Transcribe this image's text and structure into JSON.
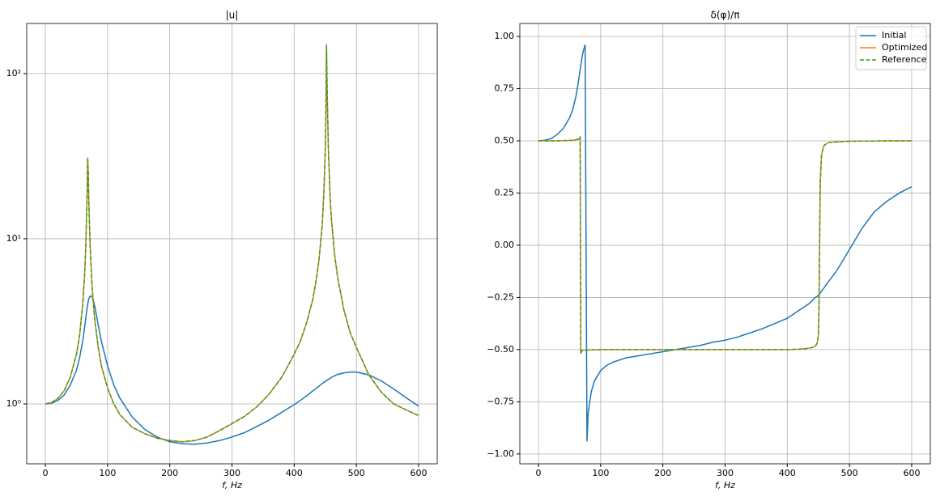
{
  "chart_data": [
    {
      "type": "line",
      "title": "|u|",
      "xlabel": "f, Hz",
      "yscale": "log",
      "grid": true,
      "xlim": [
        -30,
        630
      ],
      "ylim": [
        0.434,
        201
      ],
      "xticks": [
        0,
        100,
        200,
        300,
        400,
        500,
        600
      ],
      "yticks": [
        {
          "value": 1,
          "label": "10⁰"
        },
        {
          "value": 10,
          "label": "10¹"
        },
        {
          "value": 100,
          "label": "10²"
        }
      ],
      "x": [
        0,
        10,
        20,
        30,
        40,
        50,
        55,
        60,
        63,
        65,
        67,
        68,
        69,
        70,
        72,
        75,
        78,
        80,
        85,
        90,
        100,
        110,
        120,
        140,
        160,
        180,
        200,
        220,
        240,
        260,
        280,
        300,
        320,
        340,
        360,
        380,
        400,
        410,
        420,
        430,
        435,
        440,
        445,
        448,
        450,
        451,
        452,
        453,
        455,
        458,
        460,
        465,
        470,
        480,
        490,
        500,
        520,
        540,
        560,
        580,
        600
      ],
      "series": [
        {
          "color": "#1f77b4",
          "linestyle": "solid",
          "values": [
            1.0,
            1.01,
            1.05,
            1.13,
            1.3,
            1.6,
            1.9,
            2.4,
            2.9,
            3.3,
            3.8,
            4.0,
            4.2,
            4.35,
            4.5,
            4.45,
            4.1,
            3.8,
            3.0,
            2.4,
            1.7,
            1.3,
            1.08,
            0.83,
            0.7,
            0.63,
            0.59,
            0.575,
            0.57,
            0.58,
            0.6,
            0.63,
            0.67,
            0.73,
            0.8,
            0.89,
            0.99,
            1.05,
            1.12,
            1.2,
            1.24,
            1.28,
            1.33,
            1.35,
            1.37,
            1.38,
            1.38,
            1.39,
            1.41,
            1.43,
            1.45,
            1.48,
            1.51,
            1.54,
            1.56,
            1.56,
            1.5,
            1.38,
            1.23,
            1.09,
            0.97
          ]
        },
        {
          "color": "#ff7f0e",
          "linestyle": "solid",
          "values": [
            1.0,
            1.02,
            1.08,
            1.2,
            1.45,
            2.0,
            2.6,
            4.0,
            6,
            9,
            18,
            31,
            25,
            16,
            9,
            5.2,
            3.7,
            3.1,
            2.2,
            1.7,
            1.25,
            1.0,
            0.86,
            0.72,
            0.66,
            0.62,
            0.6,
            0.59,
            0.6,
            0.63,
            0.69,
            0.76,
            0.84,
            0.96,
            1.15,
            1.45,
            2.0,
            2.4,
            3.1,
            4.3,
            5.5,
            7.5,
            12,
            20,
            35,
            55,
            150,
            80,
            35,
            17,
            13,
            8,
            5.8,
            3.7,
            2.7,
            2.2,
            1.5,
            1.18,
            1.0,
            0.92,
            0.85
          ]
        },
        {
          "color": "#2ca02c",
          "linestyle": "dashed",
          "values": [
            1.0,
            1.02,
            1.08,
            1.2,
            1.45,
            2.0,
            2.6,
            4.0,
            6,
            9,
            18,
            31,
            25,
            16,
            9,
            5.2,
            3.7,
            3.1,
            2.2,
            1.7,
            1.25,
            1.0,
            0.86,
            0.72,
            0.66,
            0.62,
            0.6,
            0.59,
            0.6,
            0.63,
            0.69,
            0.76,
            0.84,
            0.96,
            1.15,
            1.45,
            2.0,
            2.4,
            3.1,
            4.3,
            5.5,
            7.5,
            12,
            20,
            35,
            55,
            150,
            80,
            35,
            17,
            13,
            8,
            5.8,
            3.7,
            2.7,
            2.2,
            1.5,
            1.18,
            1.0,
            0.92,
            0.85
          ]
        }
      ]
    },
    {
      "type": "line",
      "title": "δ(φ)/π",
      "xlabel": "f, Hz",
      "yscale": "linear",
      "grid": true,
      "legend": "upper right",
      "xlim": [
        -30,
        630
      ],
      "ylim": [
        -1.047,
        1.062
      ],
      "xticks": [
        0,
        100,
        200,
        300,
        400,
        500,
        600
      ],
      "yticks": [
        {
          "value": -1,
          "label": "−1.00"
        },
        {
          "value": -0.75,
          "label": "−0.75"
        },
        {
          "value": -0.5,
          "label": "−0.50"
        },
        {
          "value": -0.25,
          "label": "−0.25"
        },
        {
          "value": 0,
          "label": "0.00"
        },
        0.25,
        {
          "value": 0.5,
          "label": "0.50"
        },
        0.75,
        {
          "value": 1,
          "label": "1.00"
        }
      ],
      "x": [
        0,
        10,
        20,
        30,
        40,
        50,
        55,
        60,
        63,
        65,
        67,
        68,
        69,
        70,
        72,
        75,
        78,
        80,
        85,
        90,
        100,
        110,
        120,
        140,
        160,
        180,
        200,
        220,
        240,
        260,
        280,
        300,
        320,
        340,
        360,
        380,
        400,
        410,
        420,
        430,
        435,
        440,
        445,
        448,
        450,
        451,
        452,
        453,
        455,
        458,
        460,
        465,
        470,
        480,
        490,
        500,
        520,
        540,
        560,
        580,
        600
      ],
      "series": [
        {
          "name": "Initial",
          "color": "#1f77b4",
          "linestyle": "solid",
          "values": [
            0.5,
            0.503,
            0.51,
            0.53,
            0.56,
            0.61,
            0.65,
            0.71,
            0.76,
            0.8,
            0.84,
            0.86,
            0.88,
            0.9,
            0.93,
            0.96,
            -0.94,
            -0.8,
            -0.7,
            -0.65,
            -0.6,
            -0.575,
            -0.56,
            -0.54,
            -0.53,
            -0.52,
            -0.51,
            -0.5,
            -0.49,
            -0.48,
            -0.465,
            -0.455,
            -0.44,
            -0.42,
            -0.4,
            -0.375,
            -0.35,
            -0.33,
            -0.31,
            -0.29,
            -0.28,
            -0.265,
            -0.25,
            -0.245,
            -0.24,
            -0.235,
            -0.233,
            -0.23,
            -0.22,
            -0.21,
            -0.2,
            -0.18,
            -0.16,
            -0.12,
            -0.07,
            -0.02,
            0.08,
            0.16,
            0.21,
            0.25,
            0.28
          ]
        },
        {
          "name": "Optimized",
          "color": "#ff7f0e",
          "linestyle": "solid",
          "values": [
            0.5,
            0.5,
            0.5,
            0.5,
            0.501,
            0.502,
            0.503,
            0.505,
            0.507,
            0.508,
            0.52,
            -0.52,
            -0.51,
            -0.505,
            -0.503,
            -0.502,
            -0.502,
            -0.502,
            -0.501,
            -0.501,
            -0.5,
            -0.5,
            -0.5,
            -0.5,
            -0.5,
            -0.5,
            -0.5,
            -0.5,
            -0.5,
            -0.5,
            -0.5,
            -0.5,
            -0.5,
            -0.5,
            -0.5,
            -0.5,
            -0.5,
            -0.499,
            -0.498,
            -0.495,
            -0.493,
            -0.49,
            -0.485,
            -0.47,
            -0.43,
            -0.3,
            0,
            0.3,
            0.43,
            0.47,
            0.48,
            0.49,
            0.493,
            0.495,
            0.497,
            0.498,
            0.499,
            0.499,
            0.5,
            0.5,
            0.5
          ]
        },
        {
          "name": "Reference",
          "color": "#2ca02c",
          "linestyle": "dashed",
          "values": [
            0.5,
            0.5,
            0.5,
            0.5,
            0.501,
            0.502,
            0.503,
            0.505,
            0.507,
            0.508,
            0.52,
            -0.52,
            -0.51,
            -0.505,
            -0.503,
            -0.502,
            -0.502,
            -0.502,
            -0.501,
            -0.501,
            -0.5,
            -0.5,
            -0.5,
            -0.5,
            -0.5,
            -0.5,
            -0.5,
            -0.5,
            -0.5,
            -0.5,
            -0.5,
            -0.5,
            -0.5,
            -0.5,
            -0.5,
            -0.5,
            -0.5,
            -0.499,
            -0.498,
            -0.495,
            -0.493,
            -0.49,
            -0.485,
            -0.47,
            -0.43,
            -0.3,
            0,
            0.3,
            0.43,
            0.47,
            0.48,
            0.49,
            0.493,
            0.495,
            0.497,
            0.498,
            0.499,
            0.499,
            0.5,
            0.5,
            0.5
          ]
        }
      ]
    }
  ]
}
